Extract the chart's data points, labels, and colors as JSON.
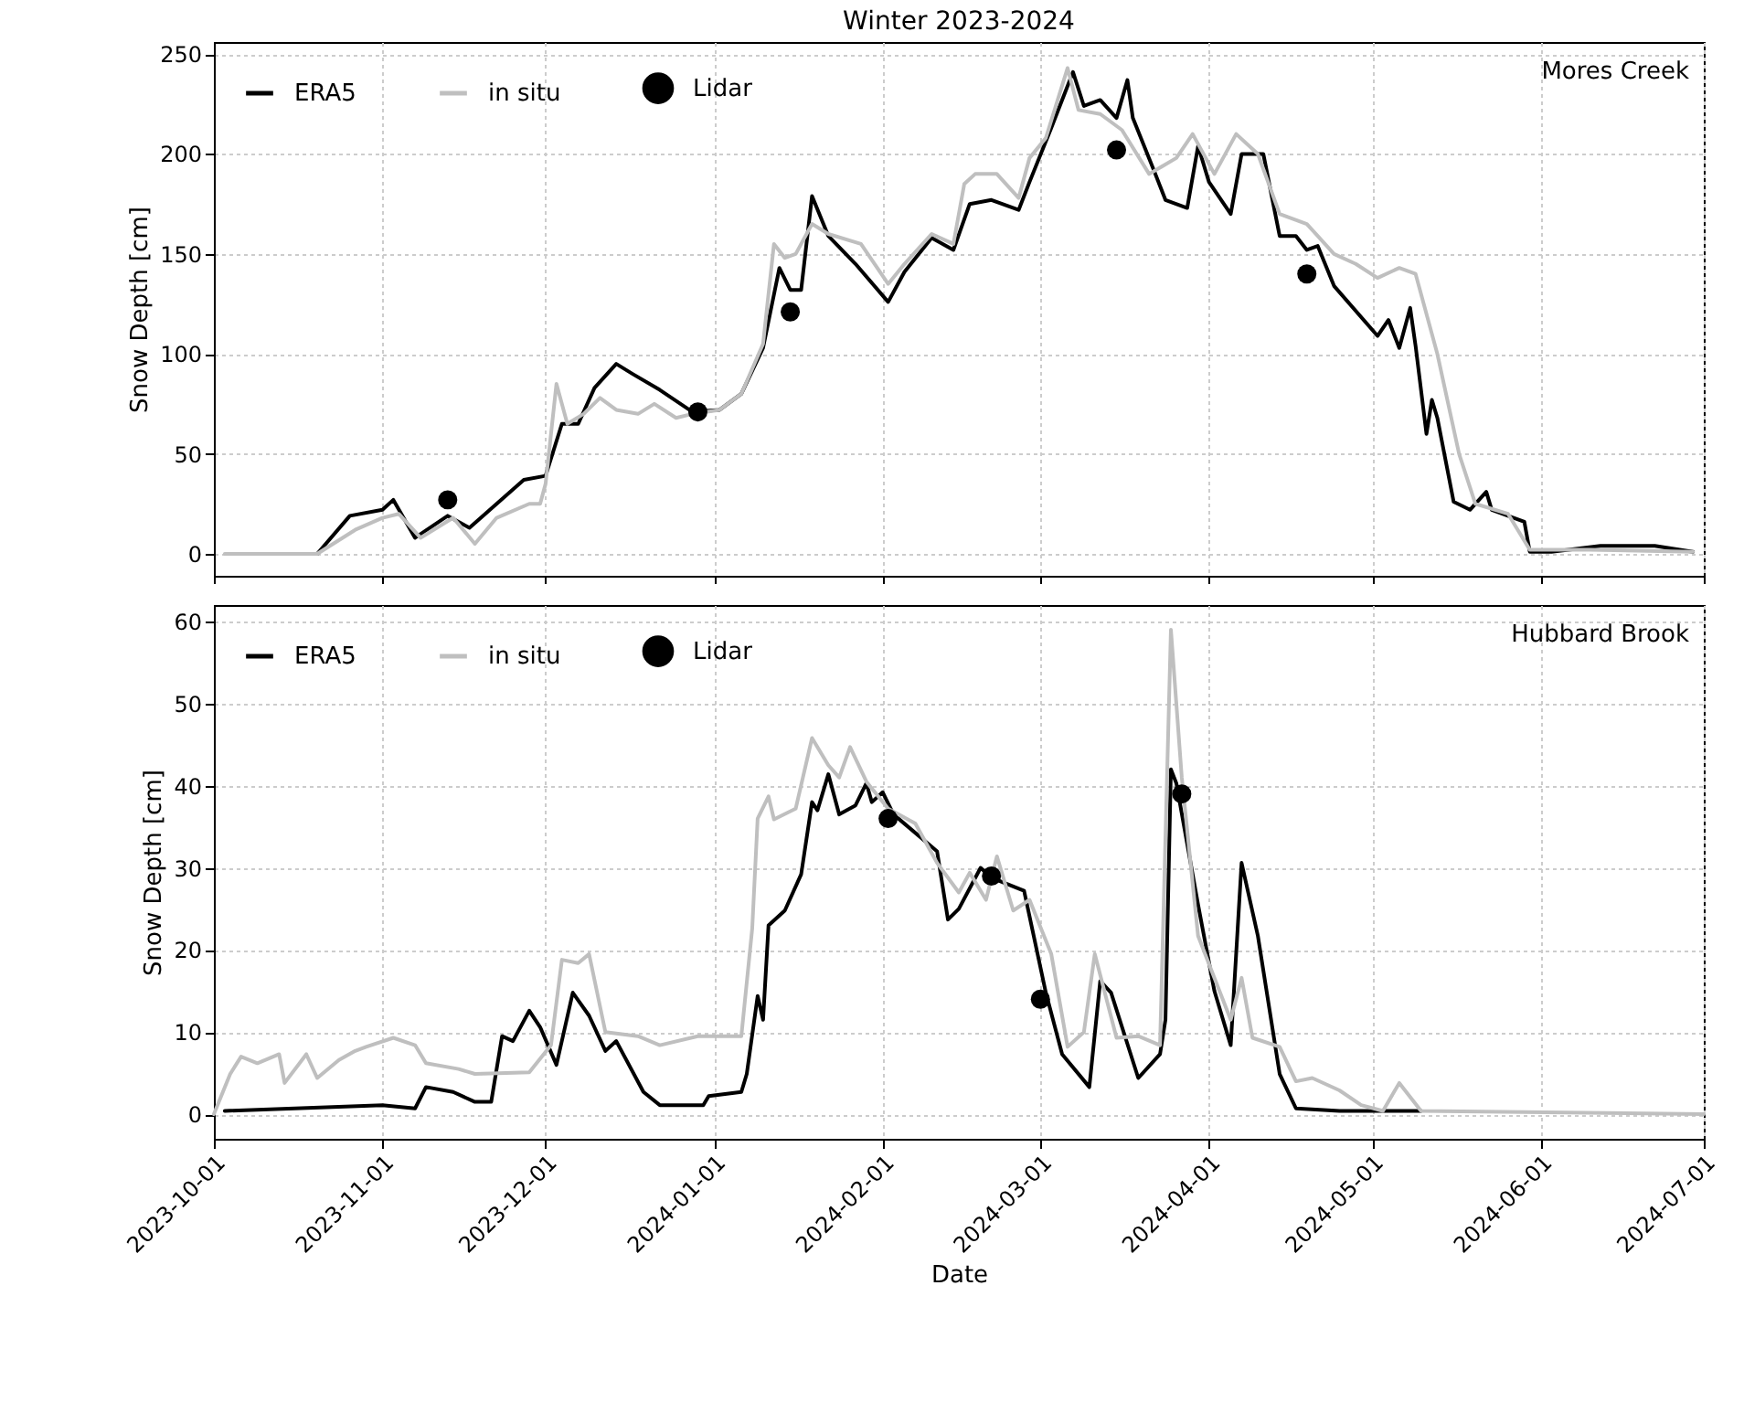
{
  "chart_data": [
    {
      "type": "line",
      "title": "Winter 2023-2024",
      "ylabel": "Snow Depth [cm]",
      "annotations": [
        "Mores Creek"
      ],
      "legend": "top left",
      "grid": true,
      "tick_labels": "y",
      "xlim": [
        "2023-10-01",
        "2024-07-01"
      ],
      "xticks": [
        "2023-10-01",
        "2023-11-01",
        "2023-12-01",
        "2024-01-01",
        "2024-02-01",
        "2024-03-01",
        "2024-04-01",
        "2024-05-01",
        "2024-06-01",
        "2024-07-01"
      ],
      "ylim": [
        -11,
        256
      ],
      "yticks": [
        0,
        50,
        100,
        150,
        200,
        250
      ],
      "series": [
        {
          "name": "ERA5",
          "type": "line",
          "color": "#000000",
          "x": [
            "2023-10-05",
            "2023-10-20",
            "2023-10-26",
            "2023-11-01",
            "2023-11-03",
            "2023-11-07",
            "2023-11-13",
            "2023-11-17",
            "2023-11-27",
            "2023-12-01",
            "2023-12-04",
            "2023-12-07",
            "2023-12-10",
            "2023-12-14",
            "2023-12-17",
            "2023-12-22",
            "2023-12-28",
            "2024-01-02",
            "2024-01-06",
            "2024-01-10",
            "2024-01-13",
            "2024-01-15",
            "2024-01-17",
            "2024-01-19",
            "2024-01-22",
            "2024-01-27",
            "2024-02-02",
            "2024-02-05",
            "2024-02-10",
            "2024-02-14",
            "2024-02-17",
            "2024-02-21",
            "2024-02-26",
            "2024-02-28",
            "2024-03-03",
            "2024-03-07",
            "2024-03-09",
            "2024-03-12",
            "2024-03-15",
            "2024-03-17",
            "2024-03-18",
            "2024-03-22",
            "2024-03-24",
            "2024-03-28",
            "2024-03-30",
            "2024-04-01",
            "2024-04-05",
            "2024-04-07",
            "2024-04-11",
            "2024-04-14",
            "2024-04-17",
            "2024-04-19",
            "2024-04-21",
            "2024-04-24",
            "2024-05-02",
            "2024-05-04",
            "2024-05-06",
            "2024-05-08",
            "2024-05-09",
            "2024-05-11",
            "2024-05-12",
            "2024-05-13",
            "2024-05-16",
            "2024-05-19",
            "2024-05-22",
            "2024-05-23",
            "2024-05-29",
            "2024-05-30",
            "2024-06-03",
            "2024-06-12",
            "2024-06-22",
            "2024-06-29"
          ],
          "values": [
            0,
            0,
            19,
            22,
            27,
            8,
            19,
            13,
            37,
            39,
            65,
            65,
            83,
            95,
            90,
            82,
            71,
            72,
            80,
            103,
            143,
            132,
            132,
            179,
            159,
            145,
            126,
            141,
            158,
            152,
            175,
            177,
            172,
            186,
            213,
            241,
            224,
            227,
            218,
            237,
            218,
            191,
            177,
            173,
            204,
            186,
            170,
            200,
            200,
            159,
            159,
            152,
            154,
            134,
            109,
            117,
            103,
            123,
            104,
            60,
            77,
            68,
            26,
            22,
            31,
            22,
            16,
            1,
            1,
            4,
            4,
            1
          ]
        },
        {
          "name": "in situ",
          "type": "line",
          "color": "#bfbfbf",
          "x": [
            "2023-10-03",
            "2023-10-20",
            "2023-10-27",
            "2023-11-01",
            "2023-11-04",
            "2023-11-08",
            "2023-11-14",
            "2023-11-18",
            "2023-11-22",
            "2023-11-28",
            "2023-11-30",
            "2023-12-01",
            "2023-12-03",
            "2023-12-05",
            "2023-12-08",
            "2023-12-11",
            "2023-12-14",
            "2023-12-18",
            "2023-12-21",
            "2023-12-25",
            "2023-12-28",
            "2024-01-02",
            "2024-01-06",
            "2024-01-10",
            "2024-01-12",
            "2024-01-14",
            "2024-01-16",
            "2024-01-19",
            "2024-01-22",
            "2024-01-28",
            "2024-02-02",
            "2024-02-05",
            "2024-02-10",
            "2024-02-14",
            "2024-02-16",
            "2024-02-18",
            "2024-02-22",
            "2024-02-26",
            "2024-02-28",
            "2024-03-02",
            "2024-03-06",
            "2024-03-08",
            "2024-03-12",
            "2024-03-16",
            "2024-03-21",
            "2024-03-26",
            "2024-03-29",
            "2024-04-02",
            "2024-04-06",
            "2024-04-10",
            "2024-04-14",
            "2024-04-19",
            "2024-04-24",
            "2024-04-28",
            "2024-05-02",
            "2024-05-06",
            "2024-05-09",
            "2024-05-13",
            "2024-05-17",
            "2024-05-20",
            "2024-05-26",
            "2024-05-30",
            "2024-06-10",
            "2024-06-29"
          ],
          "values": [
            0,
            0,
            12,
            18,
            20,
            8,
            18,
            5,
            18,
            25,
            25,
            35,
            85,
            65,
            70,
            78,
            72,
            70,
            75,
            68,
            70,
            72,
            80,
            105,
            155,
            148,
            150,
            165,
            160,
            155,
            135,
            145,
            160,
            155,
            185,
            190,
            190,
            178,
            198,
            208,
            243,
            222,
            220,
            212,
            190,
            198,
            210,
            190,
            210,
            200,
            170,
            165,
            150,
            145,
            138,
            143,
            140,
            100,
            50,
            25,
            20,
            2,
            2,
            1
          ]
        },
        {
          "name": "Lidar",
          "type": "scatter",
          "color": "#000000",
          "x": [
            "2023-11-13",
            "2023-12-29",
            "2024-01-15",
            "2024-03-15",
            "2024-04-19"
          ],
          "values": [
            27,
            71,
            121,
            202,
            140
          ]
        }
      ]
    },
    {
      "type": "line",
      "xlabel": "Date",
      "ylabel": "Snow Depth [cm]",
      "annotations": [
        "Hubbard Brook"
      ],
      "legend": "top left",
      "grid": true,
      "xlim": [
        "2023-10-01",
        "2024-07-01"
      ],
      "xticks": [
        "2023-10-01",
        "2023-11-01",
        "2023-12-01",
        "2024-01-01",
        "2024-02-01",
        "2024-03-01",
        "2024-04-01",
        "2024-05-01",
        "2024-06-01",
        "2024-07-01"
      ],
      "ylim": [
        -3,
        62
      ],
      "yticks": [
        0,
        10,
        20,
        30,
        40,
        50,
        60
      ],
      "series": [
        {
          "name": "ERA5",
          "type": "line",
          "color": "#000000",
          "x": [
            "2023-10-03",
            "2023-11-01",
            "2023-11-07",
            "2023-11-09",
            "2023-11-14",
            "2023-11-18",
            "2023-11-21",
            "2023-11-23",
            "2023-11-25",
            "2023-11-28",
            "2023-11-30",
            "2023-12-03",
            "2023-12-06",
            "2023-12-09",
            "2023-12-12",
            "2023-12-14",
            "2023-12-19",
            "2023-12-22",
            "2023-12-30",
            "2023-12-31",
            "2024-01-06",
            "2024-01-07",
            "2024-01-09",
            "2024-01-10",
            "2024-01-11",
            "2024-01-14",
            "2024-01-17",
            "2024-01-19",
            "2024-01-20",
            "2024-01-22",
            "2024-01-24",
            "2024-01-27",
            "2024-01-29",
            "2024-01-30",
            "2024-02-01",
            "2024-02-03",
            "2024-02-11",
            "2024-02-13",
            "2024-02-15",
            "2024-02-19",
            "2024-02-21",
            "2024-02-27",
            "2024-03-02",
            "2024-03-05",
            "2024-03-10",
            "2024-03-12",
            "2024-03-14",
            "2024-03-19",
            "2024-03-23",
            "2024-03-24",
            "2024-03-25",
            "2024-03-26",
            "2024-03-30",
            "2024-04-02",
            "2024-04-05",
            "2024-04-07",
            "2024-04-10",
            "2024-04-14",
            "2024-04-17",
            "2024-04-25",
            "2024-05-10"
          ],
          "values": [
            0.4,
            1.1,
            0.7,
            3.3,
            2.7,
            1.5,
            1.5,
            9.5,
            8.9,
            12.6,
            10.6,
            6,
            14.8,
            12,
            7.7,
            8.9,
            2.7,
            1.1,
            1.1,
            2.2,
            2.7,
            4.9,
            14.4,
            11.5,
            23,
            24.8,
            29.2,
            38,
            37,
            41.4,
            36.5,
            37.6,
            40.3,
            38,
            39.2,
            36.5,
            32,
            23.7,
            25,
            30,
            28.8,
            27.2,
            14.8,
            7.3,
            3.3,
            16.2,
            14.8,
            4.4,
            7.3,
            11.5,
            42,
            40.3,
            25.5,
            15,
            8.4,
            30.6,
            21.7,
            4.9,
            0.7,
            0.4,
            0.4
          ]
        },
        {
          "name": "in situ",
          "type": "line",
          "color": "#bfbfbf",
          "x": [
            "2023-10-01",
            "2023-10-04",
            "2023-10-06",
            "2023-10-09",
            "2023-10-13",
            "2023-10-14",
            "2023-10-18",
            "2023-10-20",
            "2023-10-24",
            "2023-10-27",
            "2023-10-29",
            "2023-11-03",
            "2023-11-07",
            "2023-11-09",
            "2023-11-15",
            "2023-11-18",
            "2023-11-28",
            "2023-12-02",
            "2023-12-04",
            "2023-12-07",
            "2023-12-09",
            "2023-12-12",
            "2023-12-18",
            "2023-12-22",
            "2023-12-29",
            "2024-01-06",
            "2024-01-08",
            "2024-01-09",
            "2024-01-11",
            "2024-01-12",
            "2024-01-16",
            "2024-01-19",
            "2024-01-22",
            "2024-01-24",
            "2024-01-26",
            "2024-01-29",
            "2024-02-02",
            "2024-02-07",
            "2024-02-11",
            "2024-02-15",
            "2024-02-17",
            "2024-02-20",
            "2024-02-22",
            "2024-02-25",
            "2024-02-28",
            "2024-03-03",
            "2024-03-06",
            "2024-03-09",
            "2024-03-11",
            "2024-03-15",
            "2024-03-19",
            "2024-03-23",
            "2024-03-25",
            "2024-03-27",
            "2024-03-30",
            "2024-04-02",
            "2024-04-05",
            "2024-04-07",
            "2024-04-09",
            "2024-04-14",
            "2024-04-17",
            "2024-04-20",
            "2024-04-25",
            "2024-04-29",
            "2024-05-03",
            "2024-05-06",
            "2024-05-10",
            "2024-07-01"
          ],
          "values": [
            0,
            4.9,
            7,
            6.2,
            7.3,
            3.8,
            7.3,
            4.4,
            6.6,
            7.7,
            8.2,
            9.3,
            8.4,
            6.2,
            5.5,
            4.9,
            5.1,
            8.4,
            18.8,
            18.4,
            19.5,
            10,
            9.5,
            8.4,
            9.5,
            9.5,
            22.6,
            36,
            38.7,
            35.9,
            37.2,
            45.8,
            42.5,
            41,
            44.7,
            40.5,
            37.2,
            35.4,
            30.6,
            27,
            29.4,
            26.1,
            31.4,
            24.8,
            26.1,
            19.5,
            8.2,
            10,
            19.5,
            9.3,
            9.5,
            8.4,
            59,
            41,
            21.7,
            16.6,
            11.5,
            16.6,
            9.3,
            8.2,
            4,
            4.4,
            2.9,
            1.1,
            0.4,
            3.8,
            0.4,
            0
          ]
        },
        {
          "name": "Lidar",
          "type": "scatter",
          "color": "#000000",
          "x": [
            "2024-02-02",
            "2024-02-21",
            "2024-03-01",
            "2024-03-27"
          ],
          "values": [
            36,
            29,
            14,
            39
          ]
        }
      ]
    }
  ]
}
